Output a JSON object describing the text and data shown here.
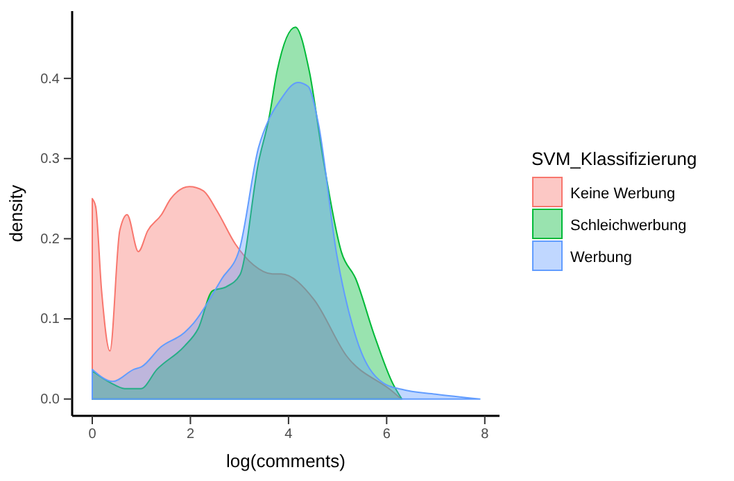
{
  "chart_data": {
    "type": "area",
    "xlabel": "log(comments)",
    "ylabel": "density",
    "legend_title": "SVM_Klassifizierung",
    "legend": "right",
    "grid": false,
    "xlim": [
      -0.41,
      8.3
    ],
    "xticks": [
      0,
      2,
      4,
      6,
      8
    ],
    "ylim": [
      -0.021,
      0.484
    ],
    "yticks": [
      {
        "value": 0,
        "label": "0.0"
      },
      {
        "value": 0.1,
        "label": "0.1"
      },
      {
        "value": 0.2,
        "label": "0.2"
      },
      {
        "value": 0.3,
        "label": "0.3"
      },
      {
        "value": 0.4,
        "label": "0.4"
      }
    ],
    "series": [
      {
        "name": "Keine Werbung",
        "color": "#f8766d",
        "x": [
          0,
          0.07,
          0.19,
          0.36,
          0.56,
          0.71,
          0.94,
          1.13,
          1.41,
          1.6,
          1.98,
          2.26,
          2.54,
          2.92,
          3.29,
          3.67,
          3.85,
          4.52,
          5.18,
          6.11,
          6.3
        ],
        "values": [
          0.25,
          0.24,
          0.135,
          0.06,
          0.21,
          0.23,
          0.184,
          0.21,
          0.23,
          0.25,
          0.265,
          0.26,
          0.235,
          0.193,
          0.167,
          0.156,
          0.156,
          0.124,
          0.054,
          0.01,
          0
        ]
      },
      {
        "name": "Schleichwerbung",
        "color": "#00ba38",
        "x": [
          0,
          0.38,
          0.66,
          0.99,
          1.32,
          1.88,
          2.16,
          2.45,
          2.73,
          3.01,
          3.39,
          3.6,
          3.77,
          4.14,
          4.42,
          4.71,
          5.08,
          5.37,
          5.74,
          6.12,
          6.31
        ],
        "values": [
          0.035,
          0.02,
          0.013,
          0.013,
          0.037,
          0.066,
          0.088,
          0.135,
          0.14,
          0.155,
          0.296,
          0.35,
          0.41,
          0.464,
          0.41,
          0.298,
          0.183,
          0.15,
          0.081,
          0.02,
          0
        ]
      },
      {
        "name": "Werbung",
        "color": "#619cff",
        "x": [
          0,
          0.42,
          0.85,
          1.0,
          1.4,
          1.88,
          2.07,
          2.64,
          3.0,
          3.39,
          3.6,
          3.8,
          4.19,
          4.4,
          4.61,
          4.98,
          5.37,
          5.93,
          6.31,
          7.0,
          7.9
        ],
        "values": [
          0.037,
          0.022,
          0.037,
          0.04,
          0.065,
          0.083,
          0.095,
          0.15,
          0.187,
          0.314,
          0.349,
          0.37,
          0.395,
          0.39,
          0.343,
          0.181,
          0.078,
          0.02,
          0.012,
          0.006,
          0
        ]
      }
    ]
  }
}
